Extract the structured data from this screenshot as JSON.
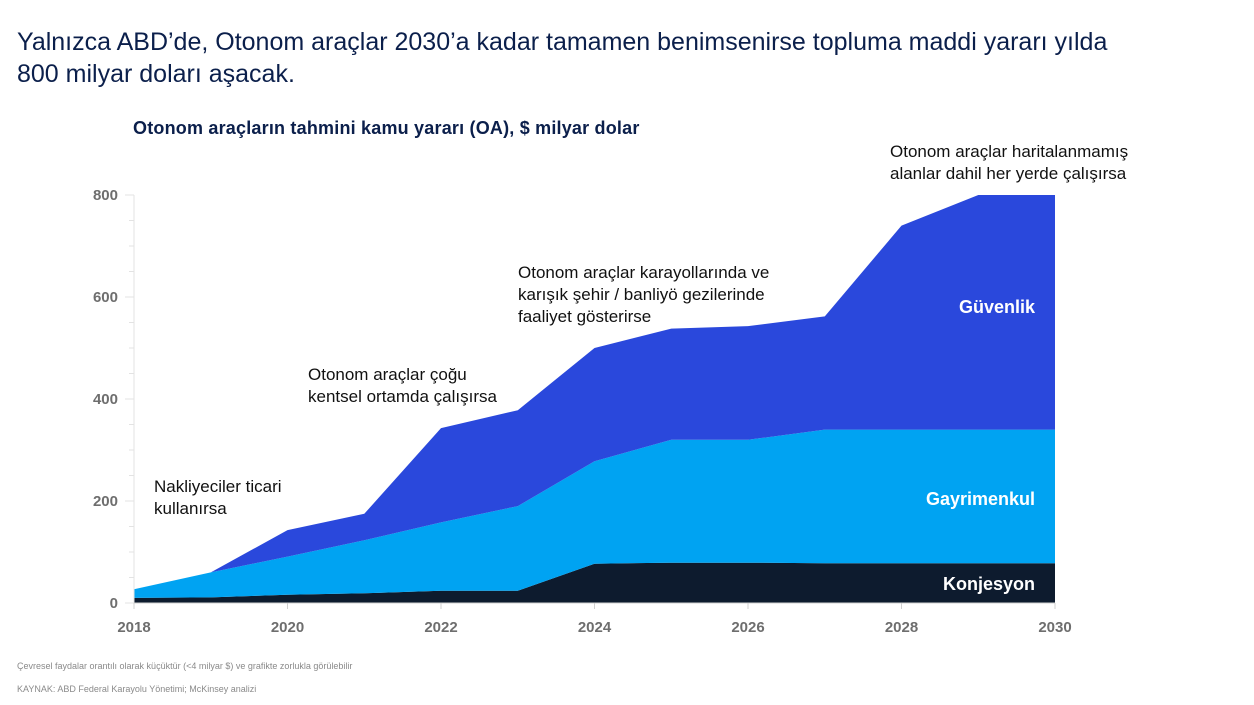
{
  "headline": {
    "line1": "Yalnızca ABD’de, Otonom araçlar 2030’a kadar tamamen benimsenirse topluma maddi yararı yılda",
    "line2": "800 milyar doları aşacak."
  },
  "footnote": "Çevresel faydalar orantılı olarak küçüktür (<4 milyar $) ve grafikte zorlukla görülebilir",
  "source": "KAYNAK: ABD Federal Karayolu Yönetimi; McKinsey analizi",
  "chart_data": {
    "type": "area",
    "stacked": true,
    "title": "Otonom araçların tahmini kamu yararı (OA), $ milyar dolar",
    "xlabel": "",
    "ylabel": "",
    "x": [
      2018,
      2019,
      2020,
      2021,
      2022,
      2023,
      2024,
      2025,
      2026,
      2027,
      2028,
      2029,
      2030
    ],
    "xticks": [
      "2018",
      "2020",
      "2022",
      "2024",
      "2026",
      "2028",
      "2030"
    ],
    "yticks": [
      "0",
      "200",
      "400",
      "600",
      "800"
    ],
    "xlim": [
      2018,
      2030
    ],
    "ylim": [
      0,
      800
    ],
    "grid": false,
    "series": [
      {
        "name": "Konjesyon",
        "color": "#0d1b2e",
        "values": [
          10,
          11,
          16,
          19,
          24,
          24,
          77,
          79,
          79,
          78,
          78,
          78,
          78
        ]
      },
      {
        "name": "Gayrimenkul",
        "color": "#00a3f2",
        "values": [
          17,
          49,
          75,
          104,
          134,
          166,
          201,
          241,
          241,
          262,
          262,
          262,
          262
        ]
      },
      {
        "name": "Güvenlik",
        "color": "#2a48dc",
        "values": [
          0,
          0,
          52,
          52,
          185,
          188,
          222,
          218,
          223,
          222,
          400,
          460,
          460
        ]
      }
    ],
    "annotations": [
      {
        "lines": [
          "Nakliyeciler ticari",
          "kullanırsa"
        ]
      },
      {
        "lines": [
          "Otonom araçlar çoğu",
          "kentsel ortamda çalışırsa"
        ]
      },
      {
        "lines": [
          "Otonom araçlar karayollarında ve",
          "karışık şehir / banliyö gezilerinde",
          "faaliyet gösterirse"
        ]
      },
      {
        "lines": [
          "Otonom araçlar haritalanmamış",
          "alanlar dahil her yerde çalışırsa"
        ]
      }
    ]
  }
}
